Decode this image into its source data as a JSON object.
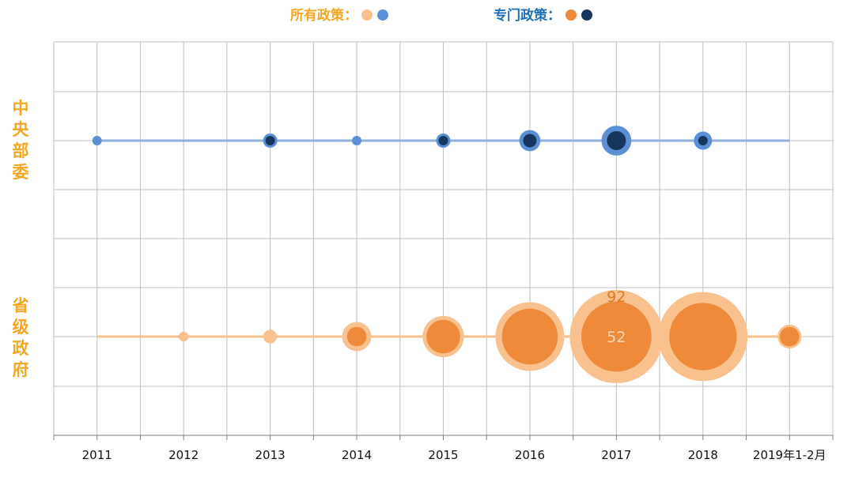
{
  "legend": {
    "all_policies": {
      "label": "所有政策：",
      "colors": [
        "#F8C18E",
        "#5B8FD6"
      ]
    },
    "special_policies": {
      "label": "专门政策：",
      "colors": [
        "#EE8A3A",
        "#17365D"
      ]
    }
  },
  "rows": {
    "central": {
      "label_chars": [
        "中",
        "央",
        "部",
        "委"
      ]
    },
    "provincial": {
      "label_chars": [
        "省",
        "级",
        "政",
        "府"
      ]
    }
  },
  "colors": {
    "central_line": "#8FB1DC",
    "central_all": "#5B8FD6",
    "central_special": "#17365D",
    "provincial_line": "#F8C18E",
    "provincial_all": "#F8C18E",
    "provincial_special": "#EE8A3A",
    "row_label": "#F5A623",
    "legend_all_text": "#F5A623",
    "legend_special_text": "#1F6FB5",
    "grid": "#BFBFBF"
  },
  "chart_data": {
    "type": "scatter",
    "categories": [
      "2011",
      "2012",
      "2013",
      "2014",
      "2015",
      "2016",
      "2017",
      "2018",
      "2019年1-2月"
    ],
    "series": [
      {
        "name": "中央部委 所有政策",
        "values": [
          1,
          0,
          1,
          1,
          1,
          3,
          7,
          2,
          0
        ]
      },
      {
        "name": "中央部委 专门政策",
        "values": [
          0,
          0,
          1,
          0,
          1,
          2,
          4,
          1,
          0
        ]
      },
      {
        "name": "省级政府 所有政策",
        "values": [
          0,
          1,
          2,
          9,
          18,
          50,
          92,
          84,
          6
        ]
      },
      {
        "name": "省级政府 专门政策",
        "values": [
          0,
          0,
          0,
          4,
          12,
          33,
          52,
          48,
          4
        ]
      }
    ],
    "annotations": [
      {
        "category": "2017",
        "series": "省级政府 所有政策",
        "text": "92"
      },
      {
        "category": "2017",
        "series": "省级政府 专门政策",
        "text": "52"
      }
    ],
    "grid": true
  }
}
